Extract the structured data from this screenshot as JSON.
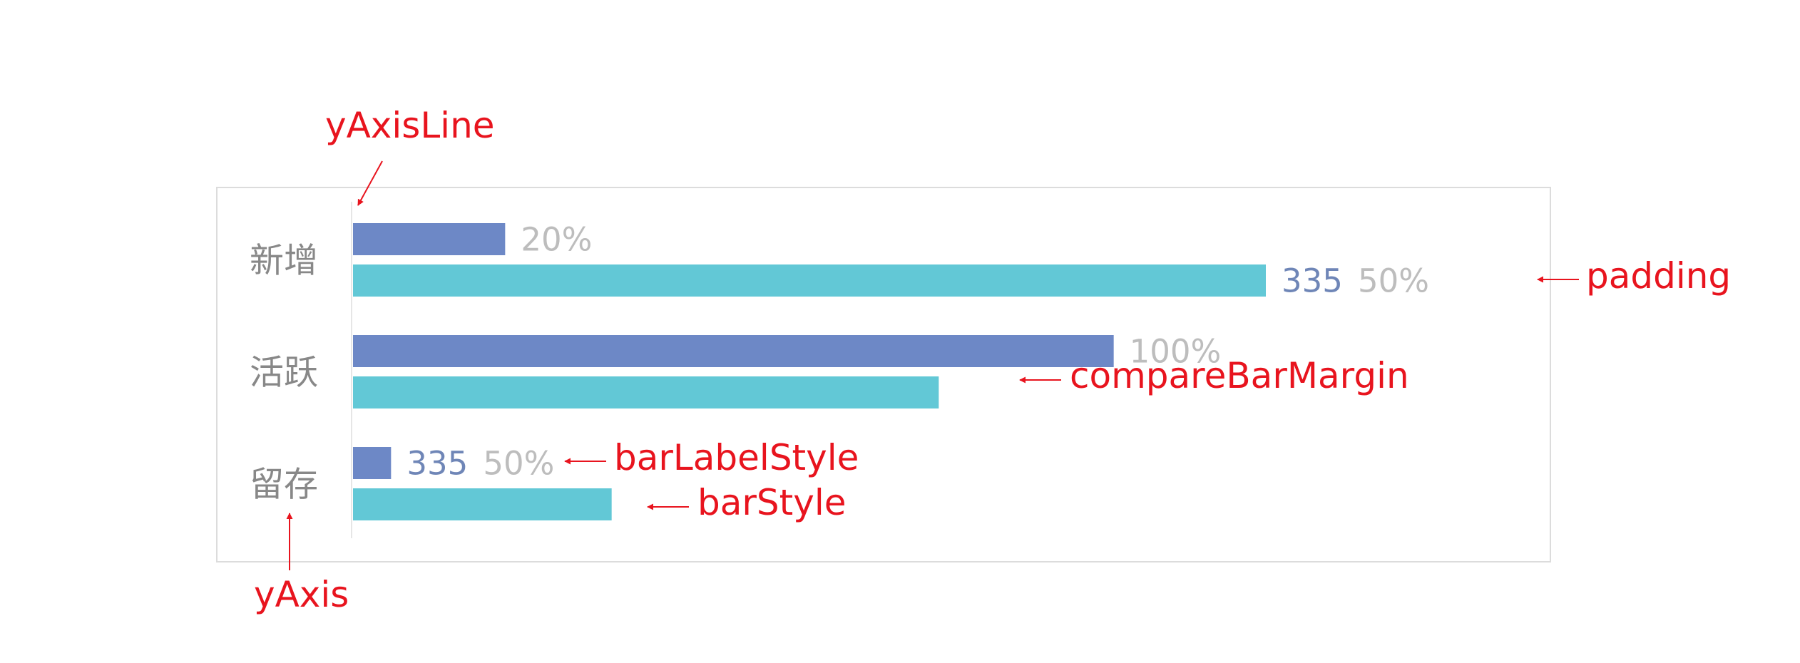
{
  "annotations": {
    "y_axis_line": "yAxisLine",
    "padding": "padding",
    "compare_bar_margin": "compareBarMargin",
    "bar_label_style": "barLabelStyle",
    "bar_style": "barStyle",
    "y_axis": "yAxis"
  },
  "colors": {
    "primary_bar": "#6d88c6",
    "compare_bar": "#62c8d6",
    "value_label": "#6f86b7",
    "percent_label": "#bdbdbd",
    "category_label": "#888888",
    "annotation": "#e8141e",
    "frame": "#dcdcdc"
  },
  "chart_data": {
    "type": "bar",
    "orientation": "horizontal",
    "categories": [
      "新增",
      "活跃",
      "留存"
    ],
    "series": [
      {
        "values": [
          20,
          100,
          5
        ]
      },
      {
        "values": [
          120,
          77,
          34
        ]
      }
    ],
    "xlim": [
      0,
      135
    ],
    "bar_labels": [
      [
        {
          "value": "",
          "percent": "20%"
        },
        {
          "value": "335",
          "percent": "50%"
        }
      ],
      [
        {
          "value": "",
          "percent": "100%"
        },
        {
          "value": "",
          "percent": ""
        }
      ],
      [
        {
          "value": "335",
          "percent": "50%"
        },
        {
          "value": "",
          "percent": ""
        }
      ]
    ]
  }
}
